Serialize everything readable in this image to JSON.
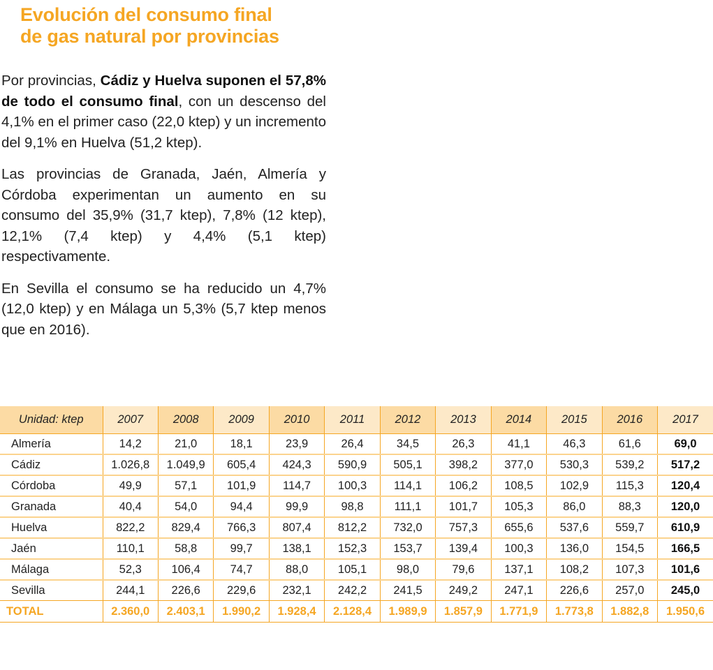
{
  "title": {
    "line1": "Evolución del consumo final",
    "line2": "de gas natural por provincias"
  },
  "paragraphs": {
    "p1": {
      "lead": "Por provincias, ",
      "bold": "Cádiz y Huelva suponen el 57,8% de todo el consumo final",
      "rest": ", con un descenso del 4,1% en el primer caso (22,0 ktep) y un incremento del 9,1% en Huelva (51,2 ktep)."
    },
    "p2": "Las provincias de Granada, Jaén, Almería y Córdoba experimentan un aumento en su consumo del 35,9% (31,7 ktep), 7,8% (12 ktep), 12,1% (7,4 ktep) y 4,4% (5,1 ktep) respectivamente.",
    "p3": "En Sevilla el consumo se ha reducido un 4,7% (12,0 ktep) y en Málaga un 5,3% (5,7 ktep menos que en 2016)."
  },
  "table": {
    "headers": [
      "Unidad: ktep",
      "2007",
      "2008",
      "2009",
      "2010",
      "2011",
      "2012",
      "2013",
      "2014",
      "2015",
      "2016",
      "2017"
    ],
    "rows": [
      [
        "Almería",
        "14,2",
        "21,0",
        "18,1",
        "23,9",
        "26,4",
        "34,5",
        "26,3",
        "41,1",
        "46,3",
        "61,6",
        "69,0"
      ],
      [
        "Cádiz",
        "1.026,8",
        "1.049,9",
        "605,4",
        "424,3",
        "590,9",
        "505,1",
        "398,2",
        "377,0",
        "530,3",
        "539,2",
        "517,2"
      ],
      [
        "Córdoba",
        "49,9",
        "57,1",
        "101,9",
        "114,7",
        "100,3",
        "114,1",
        "106,2",
        "108,5",
        "102,9",
        "115,3",
        "120,4"
      ],
      [
        "Granada",
        "40,4",
        "54,0",
        "94,4",
        "99,9",
        "98,8",
        "111,1",
        "101,7",
        "105,3",
        "86,0",
        "88,3",
        "120,0"
      ],
      [
        "Huelva",
        "822,2",
        "829,4",
        "766,3",
        "807,4",
        "812,2",
        "732,0",
        "757,3",
        "655,6",
        "537,6",
        "559,7",
        "610,9"
      ],
      [
        "Jaén",
        "110,1",
        "58,8",
        "99,7",
        "138,1",
        "152,3",
        "153,7",
        "139,4",
        "100,3",
        "136,0",
        "154,5",
        "166,5"
      ],
      [
        "Málaga",
        "52,3",
        "106,4",
        "74,7",
        "88,0",
        "105,1",
        "98,0",
        "79,6",
        "137,1",
        "108,2",
        "107,3",
        "101,6"
      ],
      [
        "Sevilla",
        "244,1",
        "226,6",
        "229,6",
        "232,1",
        "242,2",
        "241,5",
        "249,2",
        "247,1",
        "226,6",
        "257,0",
        "245,0"
      ]
    ],
    "total": [
      "TOTAL",
      "2.360,0",
      "2.403,1",
      "1.990,2",
      "1.928,4",
      "2.128,4",
      "1.989,9",
      "1.857,9",
      "1.771,9",
      "1.773,8",
      "1.882,8",
      "1.950,6"
    ]
  },
  "colors": {
    "accent": "#f5a623",
    "header_dark": "#fcdba4",
    "header_light": "#fde9c8",
    "row_divider": "#fbd38e"
  }
}
